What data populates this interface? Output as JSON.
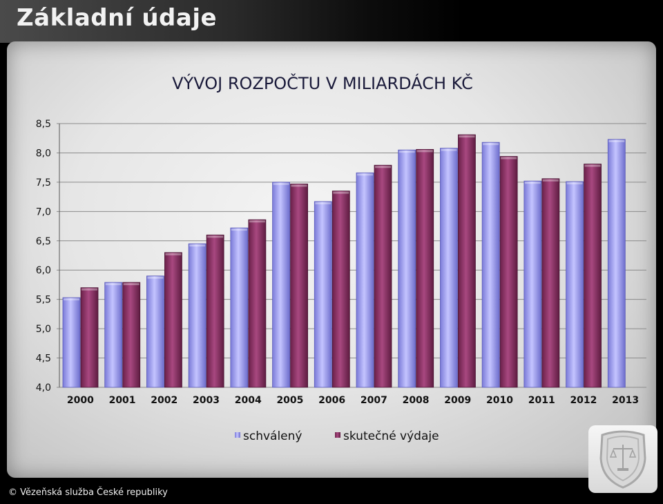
{
  "slide": {
    "title": "Základní údaje",
    "footer": "© Vězeňská služba České republiky"
  },
  "colors": {
    "schvaleny": "#9b9bef",
    "vydaje": "#8a3565"
  },
  "chart_data": {
    "type": "bar",
    "title": "VÝVOJ ROZPOČTU V MILIARDÁCH KČ",
    "xlabel": "",
    "ylabel": "",
    "ylim": [
      4.0,
      8.5
    ],
    "yticks": [
      "4,0",
      "4,5",
      "5,0",
      "5,5",
      "6,0",
      "6,5",
      "7,0",
      "7,5",
      "8,0",
      "8,5"
    ],
    "grid": true,
    "legend_position": "bottom",
    "categories": [
      "2000",
      "2001",
      "2002",
      "2003",
      "2004",
      "2005",
      "2006",
      "2007",
      "2008",
      "2009",
      "2010",
      "2011",
      "2012",
      "2013"
    ],
    "series": [
      {
        "name": "schválený",
        "values": [
          5.53,
          5.79,
          5.9,
          6.45,
          6.72,
          7.5,
          7.17,
          7.66,
          8.05,
          8.08,
          8.18,
          7.52,
          7.51,
          8.23
        ]
      },
      {
        "name": "skutečné výdaje",
        "values": [
          5.7,
          5.79,
          6.3,
          6.6,
          6.86,
          7.47,
          7.35,
          7.79,
          8.06,
          8.31,
          7.94,
          7.56,
          7.81,
          null
        ]
      }
    ]
  }
}
